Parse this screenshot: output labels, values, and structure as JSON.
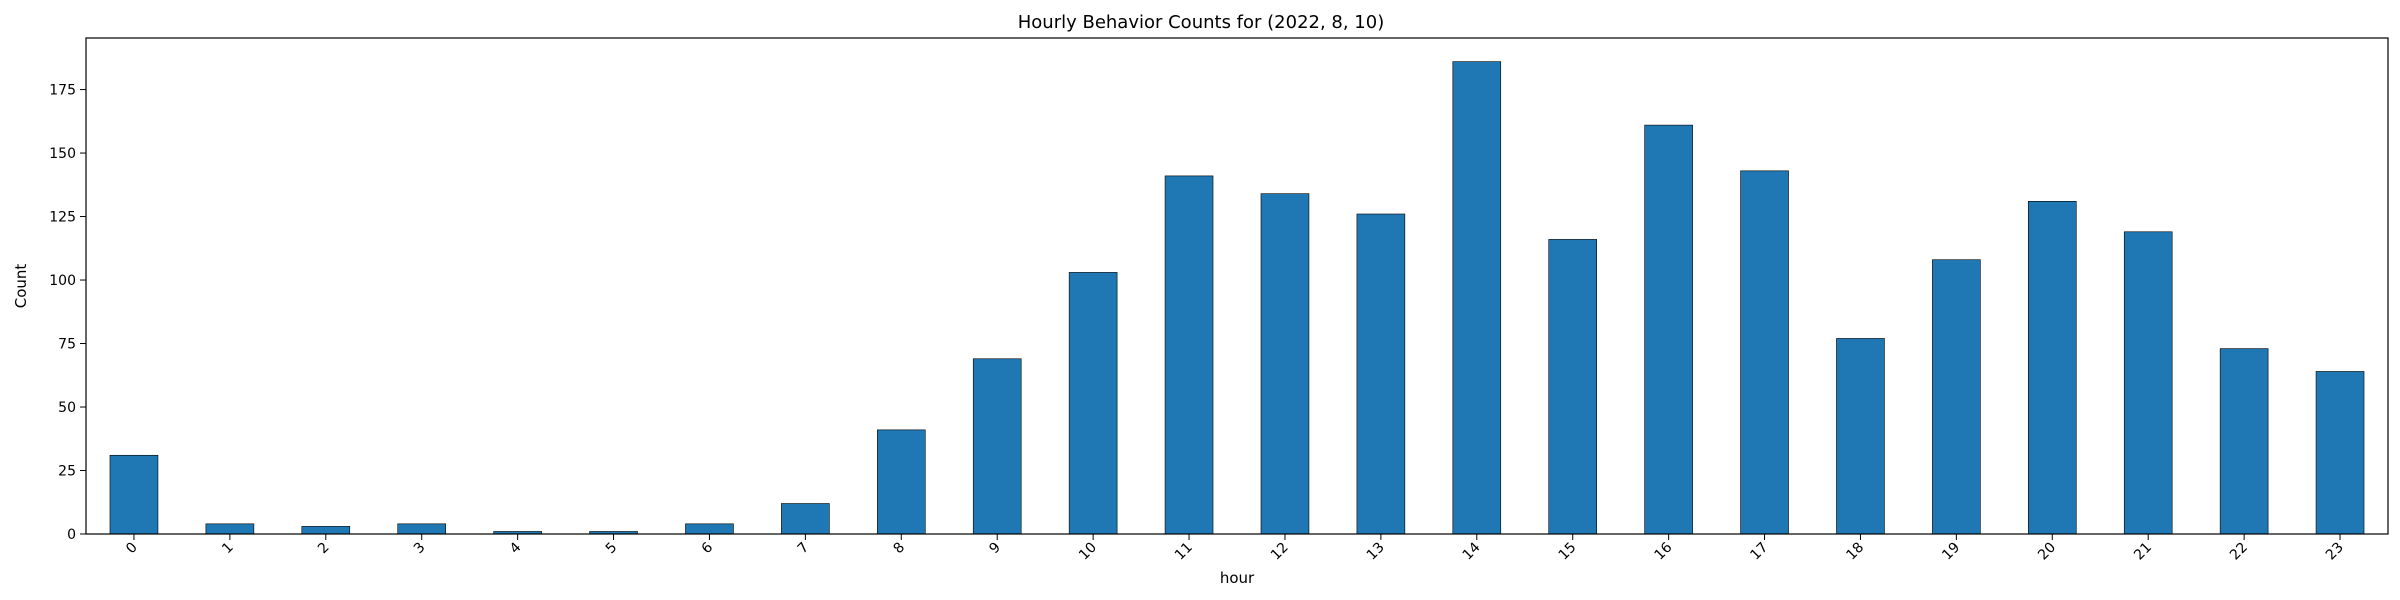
{
  "chart_data": {
    "type": "bar",
    "title": "Hourly Behavior Counts for (2022, 8, 10)",
    "xlabel": "hour",
    "ylabel": "Count",
    "categories": [
      "0",
      "1",
      "2",
      "3",
      "4",
      "5",
      "6",
      "7",
      "8",
      "9",
      "10",
      "11",
      "12",
      "13",
      "14",
      "15",
      "16",
      "17",
      "18",
      "19",
      "20",
      "21",
      "22",
      "23"
    ],
    "values": [
      31,
      4,
      3,
      4,
      1,
      1,
      4,
      12,
      41,
      69,
      103,
      141,
      134,
      126,
      186,
      116,
      161,
      143,
      77,
      108,
      131,
      119,
      73,
      64
    ],
    "ylim": [
      0,
      195.3
    ],
    "yticks": [
      0,
      25,
      50,
      75,
      100,
      125,
      150,
      175
    ],
    "grid": false,
    "legend": "none",
    "bar_color": "#1f77b4",
    "bar_edge_color": "#000000"
  }
}
